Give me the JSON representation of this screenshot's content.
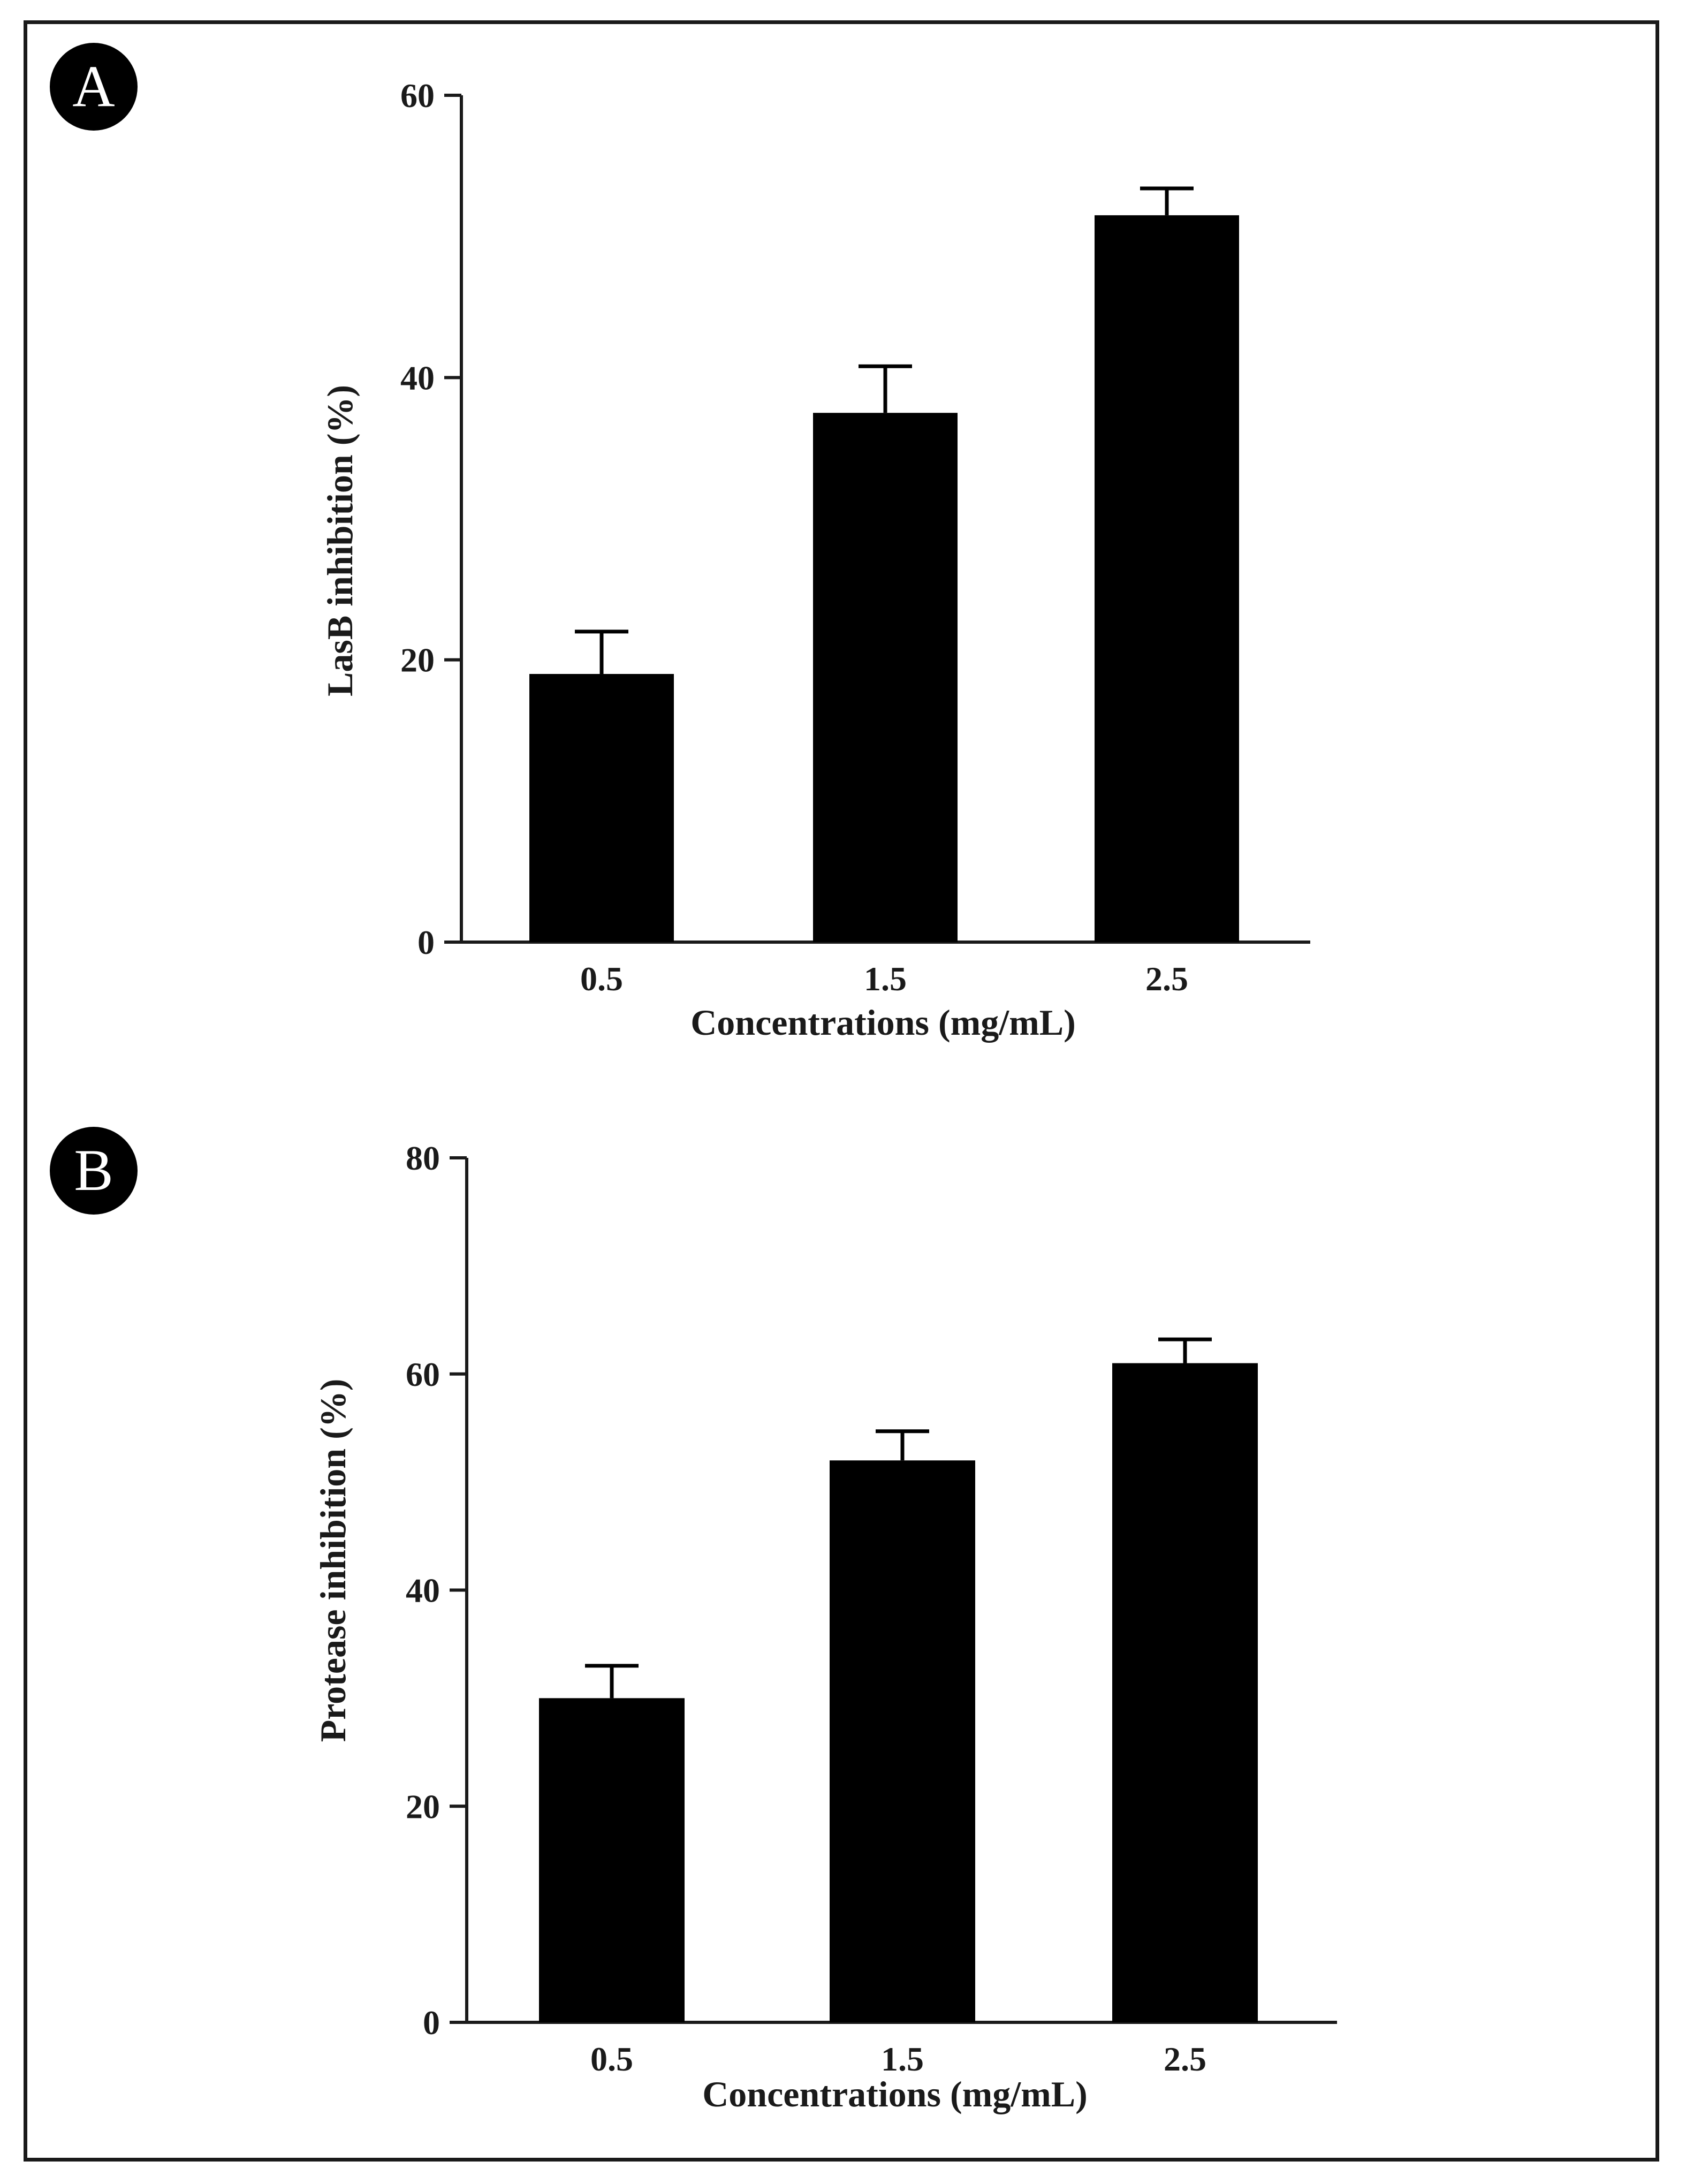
{
  "chart_data": [
    {
      "panel": "A",
      "type": "bar",
      "categories": [
        "0.5",
        "1.5",
        "2.5"
      ],
      "values": [
        19,
        37.5,
        51.5
      ],
      "errors": [
        3,
        3.3,
        1.9
      ],
      "xlabel": "Concentrations (mg/mL)",
      "ylabel": "LasB inhibition (%)",
      "ylim": [
        0,
        60
      ],
      "yticks": [
        0,
        20,
        40,
        60
      ],
      "grid": false,
      "bar_color": "#000000"
    },
    {
      "panel": "B",
      "type": "bar",
      "categories": [
        "0.5",
        "1.5",
        "2.5"
      ],
      "values": [
        30,
        52,
        61
      ],
      "errors": [
        3,
        2.7,
        2.2
      ],
      "xlabel": "Concentrations (mg/mL)",
      "ylabel": "Protease inhibition (%)",
      "ylim": [
        0,
        80
      ],
      "yticks": [
        0,
        20,
        40,
        60,
        80
      ],
      "grid": false,
      "bar_color": "#000000"
    }
  ]
}
